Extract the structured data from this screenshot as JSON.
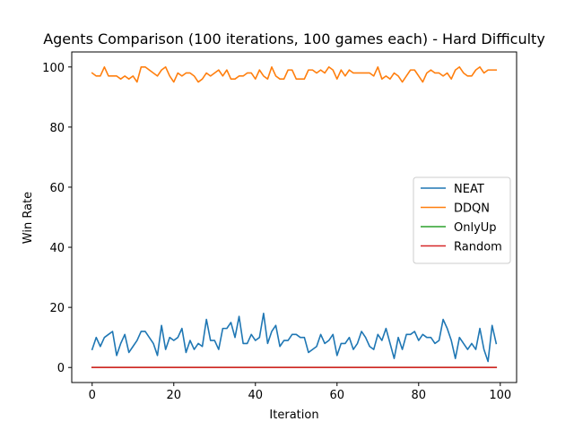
{
  "chart_data": {
    "type": "line",
    "title": "Agents Comparison (100 iterations, 100 games each) - Hard Difficulty",
    "xlabel": "Iteration",
    "ylabel": "Win Rate",
    "xlim": [
      -5,
      104
    ],
    "ylim": [
      -5,
      105
    ],
    "xticks": [
      0,
      20,
      40,
      60,
      80,
      100
    ],
    "yticks": [
      0,
      20,
      40,
      60,
      80,
      100
    ],
    "grid": false,
    "legend_position": "center-right",
    "series": [
      {
        "name": "NEAT",
        "color": "#1f77b4",
        "values": [
          6,
          10,
          7,
          10,
          11,
          12,
          4,
          8,
          11,
          5,
          7,
          9,
          12,
          12,
          10,
          8,
          4,
          14,
          6,
          10,
          9,
          10,
          13,
          5,
          9,
          6,
          8,
          7,
          16,
          9,
          9,
          6,
          13,
          13,
          15,
          10,
          17,
          8,
          8,
          11,
          9,
          10,
          18,
          8,
          12,
          14,
          7,
          9,
          9,
          11,
          11,
          10,
          10,
          5,
          6,
          7,
          11,
          8,
          9,
          11,
          4,
          8,
          8,
          10,
          6,
          8,
          12,
          10,
          7,
          6,
          11,
          9,
          13,
          8,
          3,
          10,
          6,
          11,
          11,
          12,
          9,
          11,
          10,
          10,
          8,
          9,
          16,
          13,
          9,
          3,
          10,
          8,
          6,
          8,
          6,
          13,
          6,
          2,
          14,
          8
        ]
      },
      {
        "name": "DDQN",
        "color": "#ff7f0e",
        "values": [
          98,
          97,
          97,
          100,
          97,
          97,
          97,
          96,
          97,
          96,
          97,
          95,
          100,
          100,
          99,
          98,
          97,
          99,
          100,
          97,
          95,
          98,
          97,
          98,
          98,
          97,
          95,
          96,
          98,
          97,
          98,
          99,
          97,
          99,
          96,
          96,
          97,
          97,
          98,
          98,
          96,
          99,
          97,
          96,
          100,
          97,
          96,
          96,
          99,
          99,
          96,
          96,
          96,
          99,
          99,
          98,
          99,
          98,
          100,
          99,
          96,
          99,
          97,
          99,
          98,
          98,
          98,
          98,
          98,
          97,
          100,
          96,
          97,
          96,
          98,
          97,
          95,
          97,
          99,
          99,
          97,
          95,
          98,
          99,
          98,
          98,
          97,
          98,
          96,
          99,
          100,
          98,
          97,
          97,
          99,
          100,
          98,
          99,
          99,
          99
        ]
      },
      {
        "name": "OnlyUp",
        "color": "#2ca02c",
        "values": [
          0,
          0,
          0,
          0,
          0,
          0,
          0,
          0,
          0,
          0,
          0,
          0,
          0,
          0,
          0,
          0,
          0,
          0,
          0,
          0,
          0,
          0,
          0,
          0,
          0,
          0,
          0,
          0,
          0,
          0,
          0,
          0,
          0,
          0,
          0,
          0,
          0,
          0,
          0,
          0,
          0,
          0,
          0,
          0,
          0,
          0,
          0,
          0,
          0,
          0,
          0,
          0,
          0,
          0,
          0,
          0,
          0,
          0,
          0,
          0,
          0,
          0,
          0,
          0,
          0,
          0,
          0,
          0,
          0,
          0,
          0,
          0,
          0,
          0,
          0,
          0,
          0,
          0,
          0,
          0,
          0,
          0,
          0,
          0,
          0,
          0,
          0,
          0,
          0,
          0,
          0,
          0,
          0,
          0,
          0,
          0,
          0,
          0,
          0,
          0
        ]
      },
      {
        "name": "Random",
        "color": "#d62728",
        "values": [
          0,
          0,
          0,
          0,
          0,
          0,
          0,
          0,
          0,
          0,
          0,
          0,
          0,
          0,
          0,
          0,
          0,
          0,
          0,
          0,
          0,
          0,
          0,
          0,
          0,
          0,
          0,
          0,
          0,
          0,
          0,
          0,
          0,
          0,
          0,
          0,
          0,
          0,
          0,
          0,
          0,
          0,
          0,
          0,
          0,
          0,
          0,
          0,
          0,
          0,
          0,
          0,
          0,
          0,
          0,
          0,
          0,
          0,
          0,
          0,
          0,
          0,
          0,
          0,
          0,
          0,
          0,
          0,
          0,
          0,
          0,
          0,
          0,
          0,
          0,
          0,
          0,
          0,
          0,
          0,
          0,
          0,
          0,
          0,
          0,
          0,
          0,
          0,
          0,
          0,
          0,
          0,
          0,
          0,
          0,
          0,
          0,
          0,
          0,
          0
        ]
      }
    ]
  }
}
